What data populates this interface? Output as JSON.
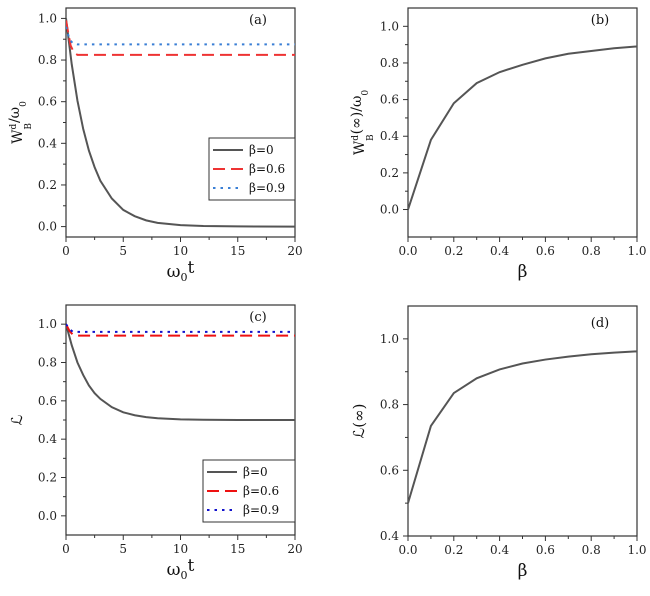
{
  "chart_data": [
    {
      "tag": "(a)",
      "type": "line",
      "xlabel": "ω0t",
      "ylabel": "WBd/ω0",
      "xlim": [
        0,
        20
      ],
      "ylim": [
        -0.05,
        1.05
      ],
      "xticks": [
        "0",
        "5",
        "10",
        "15",
        "20"
      ],
      "xtick_values": [
        0,
        5,
        10,
        15,
        20
      ],
      "yticks": [
        "0.0",
        "0.2",
        "0.4",
        "0.6",
        "0.8",
        "1.0"
      ],
      "ytick_values": [
        0,
        0.2,
        0.4,
        0.6,
        0.8,
        1.0
      ],
      "legend_position": "lower-right",
      "series": [
        {
          "name": "β=0",
          "color": "#555555",
          "style": "solid",
          "x": [
            0,
            0.5,
            1,
            1.5,
            2,
            2.5,
            3,
            4,
            5,
            6,
            7,
            8,
            10,
            12,
            15,
            20
          ],
          "y": [
            1.0,
            0.78,
            0.605,
            0.47,
            0.365,
            0.285,
            0.22,
            0.135,
            0.08,
            0.05,
            0.03,
            0.018,
            0.007,
            0.003,
            0.001,
            0.0
          ]
        },
        {
          "name": "β=0.6",
          "color": "#ee3333",
          "style": "dashed",
          "x": [
            0,
            0.2,
            0.4,
            0.7,
            1,
            20
          ],
          "y": [
            0.99,
            0.93,
            0.87,
            0.835,
            0.825,
            0.825
          ]
        },
        {
          "name": "β=0.9",
          "color": "#3a7fd5",
          "style": "dotted",
          "x": [
            0,
            0.3,
            0.6,
            1,
            20
          ],
          "y": [
            0.96,
            0.9,
            0.88,
            0.875,
            0.875
          ]
        }
      ]
    },
    {
      "tag": "(b)",
      "type": "line",
      "xlabel": "β",
      "ylabel": "WBd(∞)/ω0",
      "xlim": [
        0,
        1
      ],
      "ylim": [
        -0.15,
        1.1
      ],
      "xticks": [
        "0.0",
        "0.2",
        "0.4",
        "0.6",
        "0.8",
        "1.0"
      ],
      "xtick_values": [
        0,
        0.2,
        0.4,
        0.6,
        0.8,
        1.0
      ],
      "yticks": [
        "0.0",
        "0.2",
        "0.4",
        "0.6",
        "0.8",
        "1.0"
      ],
      "ytick_values": [
        0,
        0.2,
        0.4,
        0.6,
        0.8,
        1.0
      ],
      "series": [
        {
          "color": "#555555",
          "style": "solid",
          "x": [
            0,
            0.1,
            0.2,
            0.3,
            0.4,
            0.5,
            0.6,
            0.7,
            0.8,
            0.9,
            1.0
          ],
          "y": [
            0,
            0.38,
            0.58,
            0.69,
            0.75,
            0.79,
            0.825,
            0.85,
            0.865,
            0.88,
            0.89
          ]
        }
      ]
    },
    {
      "tag": "(c)",
      "type": "line",
      "xlabel": "ω0t",
      "ylabel": "ℒ",
      "xlim": [
        0,
        20
      ],
      "ylim": [
        -0.1,
        1.1
      ],
      "xticks": [
        "0",
        "5",
        "10",
        "15",
        "20"
      ],
      "xtick_values": [
        0,
        5,
        10,
        15,
        20
      ],
      "yticks": [
        "0.0",
        "0.2",
        "0.4",
        "0.6",
        "0.8",
        "1.0"
      ],
      "ytick_values": [
        0,
        0.2,
        0.4,
        0.6,
        0.8,
        1.0
      ],
      "legend_position": "lower-right",
      "series": [
        {
          "name": "β=0",
          "color": "#555555",
          "style": "solid",
          "x": [
            0,
            0.5,
            1,
            1.5,
            2,
            2.5,
            3,
            4,
            5,
            6,
            7,
            8,
            10,
            12,
            15,
            20
          ],
          "y": [
            1.0,
            0.89,
            0.8,
            0.735,
            0.68,
            0.64,
            0.61,
            0.567,
            0.54,
            0.525,
            0.515,
            0.509,
            0.503,
            0.501,
            0.5,
            0.5
          ]
        },
        {
          "name": "β=0.6",
          "color": "#ee1111",
          "style": "dashed",
          "x": [
            0,
            0.3,
            0.6,
            1,
            20
          ],
          "y": [
            1.0,
            0.965,
            0.945,
            0.94,
            0.94
          ]
        },
        {
          "name": "β=0.9",
          "color": "#1111cc",
          "style": "dotted",
          "x": [
            0,
            0.3,
            0.6,
            20
          ],
          "y": [
            1.0,
            0.975,
            0.96,
            0.96
          ]
        }
      ]
    },
    {
      "tag": "(d)",
      "type": "line",
      "xlabel": "β",
      "ylabel": "ℒ(∞)",
      "xlim": [
        0,
        1
      ],
      "ylim": [
        0.4,
        1.1
      ],
      "xticks": [
        "0.0",
        "0.2",
        "0.4",
        "0.6",
        "0.8",
        "1.0"
      ],
      "xtick_values": [
        0,
        0.2,
        0.4,
        0.6,
        0.8,
        1.0
      ],
      "yticks": [
        "0.4",
        "0.6",
        "0.8",
        "1.0"
      ],
      "ytick_values": [
        0.4,
        0.6,
        0.8,
        1.0
      ],
      "series": [
        {
          "color": "#555555",
          "style": "solid",
          "x": [
            0,
            0.1,
            0.2,
            0.3,
            0.4,
            0.5,
            0.6,
            0.7,
            0.8,
            0.9,
            1.0
          ],
          "y": [
            0.5,
            0.735,
            0.835,
            0.88,
            0.907,
            0.925,
            0.937,
            0.946,
            0.953,
            0.958,
            0.962
          ]
        }
      ]
    }
  ]
}
